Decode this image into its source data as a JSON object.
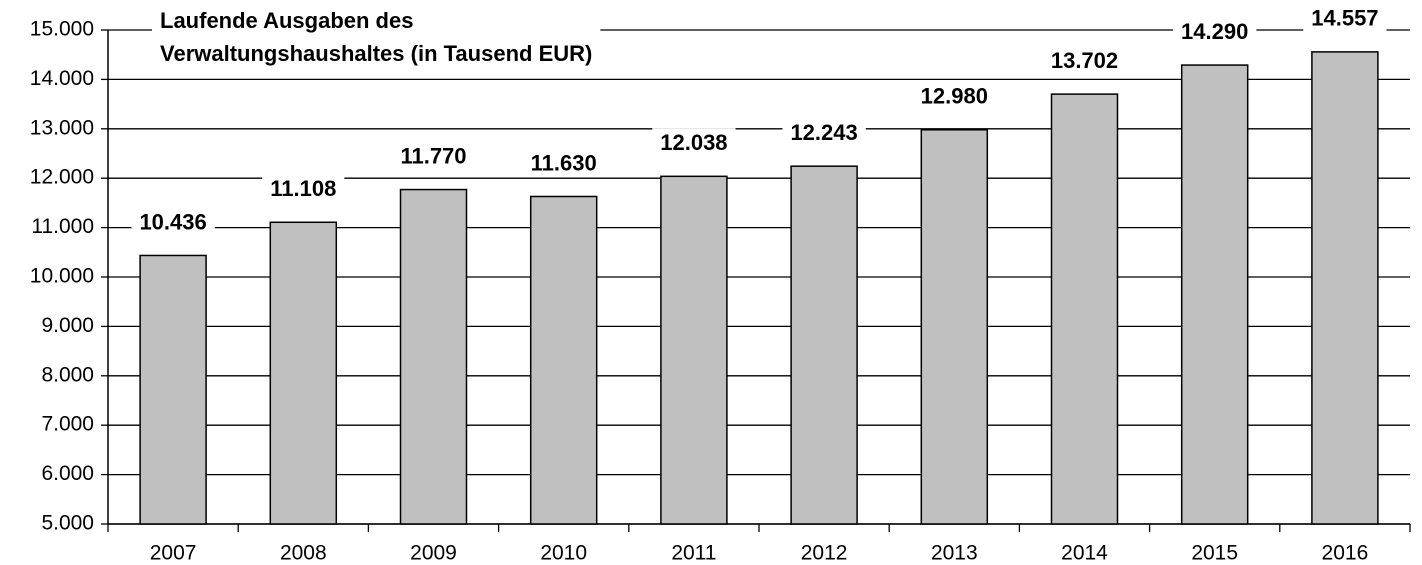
{
  "chart_data": {
    "type": "bar",
    "title": [
      "Laufende Ausgaben des",
      "Verwaltungshaushaltes (in Tausend EUR)"
    ],
    "categories": [
      "2007",
      "2008",
      "2009",
      "2010",
      "2011",
      "2012",
      "2013",
      "2014",
      "2015",
      "2016"
    ],
    "values": [
      10436,
      11108,
      11770,
      11630,
      12038,
      12243,
      12980,
      13702,
      14290,
      14557
    ],
    "value_labels": [
      "10.436",
      "11.108",
      "11.770",
      "11.630",
      "12.038",
      "12.243",
      "12.980",
      "13.702",
      "14.290",
      "14.557"
    ],
    "color": "#c0c0c0",
    "ylim": [
      5000,
      15000
    ],
    "yticks": [
      {
        "value": 5000,
        "label": "5.000"
      },
      {
        "value": 6000,
        "label": "6.000"
      },
      {
        "value": 7000,
        "label": "7.000"
      },
      {
        "value": 8000,
        "label": "8.000"
      },
      {
        "value": 9000,
        "label": "9.000"
      },
      {
        "value": 10000,
        "label": "10.000"
      },
      {
        "value": 11000,
        "label": "11.000"
      },
      {
        "value": 12000,
        "label": "12.000"
      },
      {
        "value": 13000,
        "label": "13.000"
      },
      {
        "value": 14000,
        "label": "14.000"
      },
      {
        "value": 15000,
        "label": "15.000"
      }
    ],
    "grid": true
  }
}
